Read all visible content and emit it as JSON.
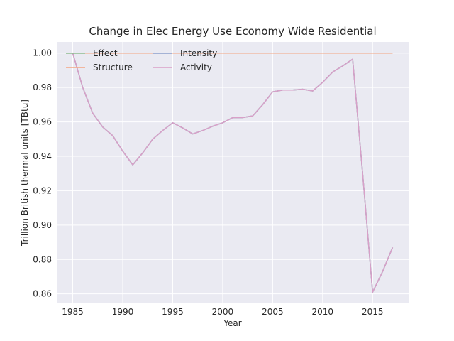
{
  "chart_data": {
    "type": "line",
    "title": "Change in Elec Energy Use Economy Wide Residential",
    "xlabel": "Year",
    "ylabel": "Trillion British thermal units [TBtu]",
    "xlim": [
      1983.4,
      2018.6
    ],
    "ylim": [
      0.8545,
      1.0065
    ],
    "x_ticks": [
      1985,
      1990,
      1995,
      2000,
      2005,
      2010,
      2015
    ],
    "y_ticks": [
      0.86,
      0.88,
      0.9,
      0.92,
      0.94,
      0.96,
      0.98,
      1.0
    ],
    "y_tick_labels": [
      "0.86",
      "0.88",
      "0.90",
      "0.92",
      "0.94",
      "0.96",
      "0.98",
      "1.00"
    ],
    "grid": true,
    "legend_position": "top-left",
    "x": [
      1985,
      1986,
      1987,
      1988,
      1989,
      1990,
      1991,
      1992,
      1993,
      1994,
      1995,
      1996,
      1997,
      1998,
      1999,
      2000,
      2001,
      2002,
      2003,
      2004,
      2005,
      2006,
      2007,
      2008,
      2009,
      2010,
      2011,
      2012,
      2013,
      2014,
      2015,
      2016,
      2017
    ],
    "series": [
      {
        "name": "Effect",
        "color": "#8fbc8f",
        "values": [
          1.0,
          0.98,
          0.965,
          0.957,
          0.952,
          0.943,
          0.935,
          0.942,
          0.95,
          0.955,
          0.9595,
          0.9565,
          0.953,
          0.955,
          0.9575,
          0.9595,
          0.9625,
          0.9625,
          0.9635,
          0.97,
          0.9775,
          0.9785,
          0.9785,
          0.979,
          0.978,
          0.983,
          0.989,
          0.9925,
          0.9965,
          0.93,
          0.861,
          0.873,
          0.887
        ]
      },
      {
        "name": "Structure",
        "color": "#f4a582",
        "values": [
          1.0,
          1.0,
          1.0,
          1.0,
          1.0,
          1.0,
          1.0,
          1.0,
          1.0,
          1.0,
          1.0,
          1.0,
          1.0,
          1.0,
          1.0,
          1.0,
          1.0,
          1.0,
          1.0,
          1.0,
          1.0,
          1.0,
          1.0,
          1.0,
          1.0,
          1.0,
          1.0,
          1.0,
          1.0,
          1.0,
          1.0,
          1.0,
          1.0
        ]
      },
      {
        "name": "Intensity",
        "color": "#8da0cb",
        "values": [
          1.0,
          0.98,
          0.965,
          0.957,
          0.952,
          0.943,
          0.935,
          0.942,
          0.95,
          0.955,
          0.9595,
          0.9565,
          0.953,
          0.955,
          0.9575,
          0.9595,
          0.9625,
          0.9625,
          0.9635,
          0.97,
          0.9775,
          0.9785,
          0.9785,
          0.979,
          0.978,
          0.983,
          0.989,
          0.9925,
          0.9965,
          0.93,
          0.861,
          0.873,
          0.887
        ]
      },
      {
        "name": "Activity",
        "color": "#d9a0c8",
        "values": [
          1.0,
          0.98,
          0.965,
          0.957,
          0.952,
          0.943,
          0.935,
          0.942,
          0.95,
          0.955,
          0.9595,
          0.9565,
          0.953,
          0.955,
          0.9575,
          0.9595,
          0.9625,
          0.9625,
          0.9635,
          0.97,
          0.9775,
          0.9785,
          0.9785,
          0.979,
          0.978,
          0.983,
          0.989,
          0.9925,
          0.9965,
          0.93,
          0.861,
          0.873,
          0.887
        ]
      }
    ],
    "colors": {
      "plot_background": "#eaeaf2",
      "grid": "#ffffff",
      "text": "#262626"
    }
  }
}
